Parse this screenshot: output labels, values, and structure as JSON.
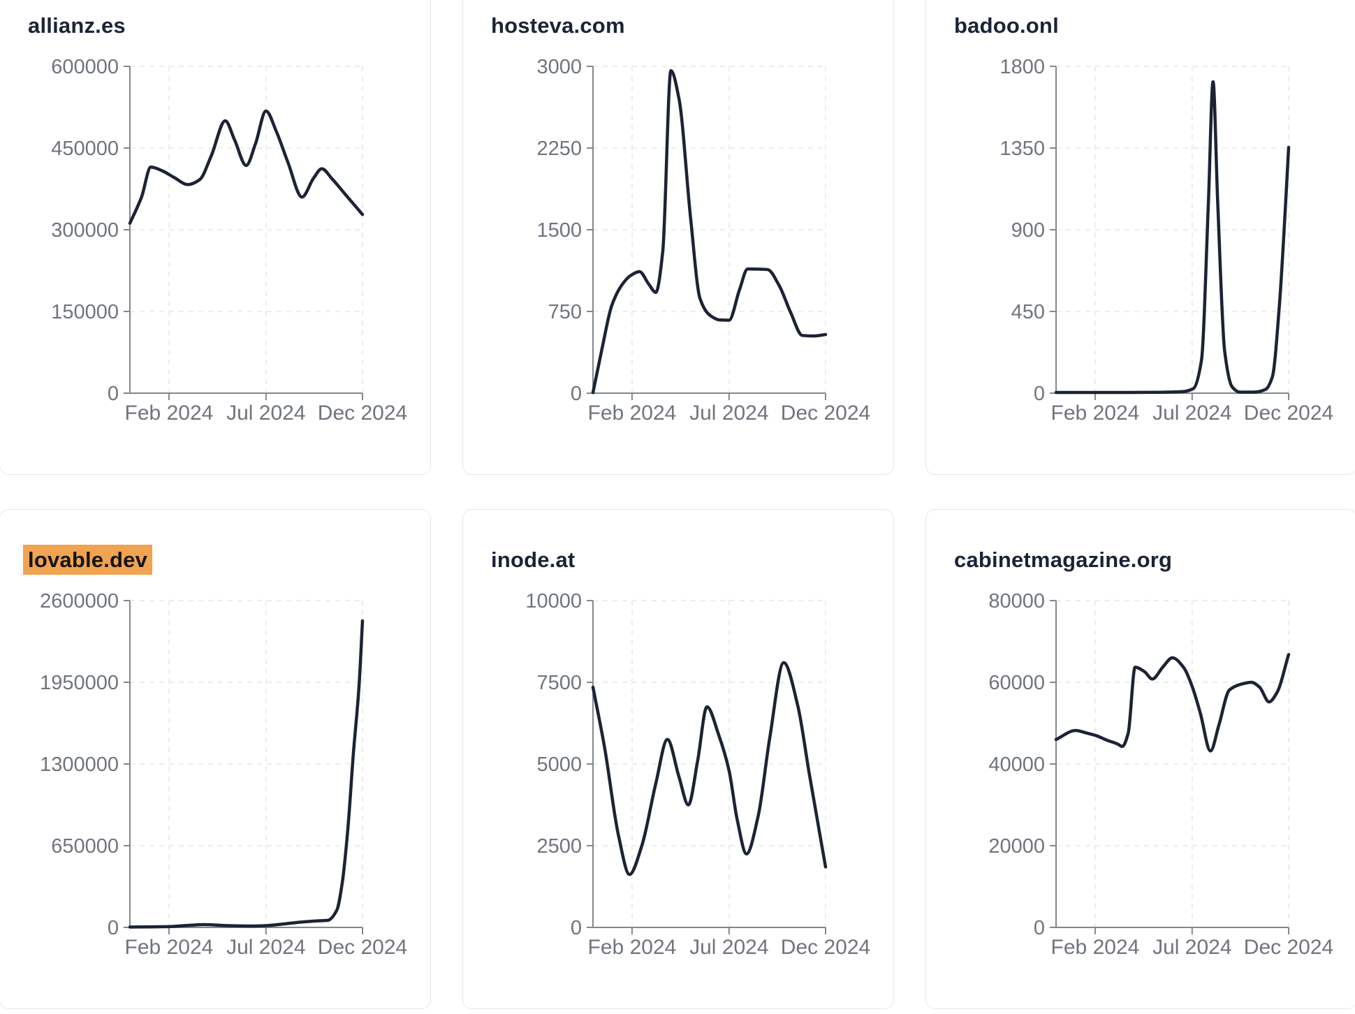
{
  "page": {
    "background": "#ffffff"
  },
  "colors": {
    "line": "#1b2334",
    "title": "#1b2336",
    "tick_label": "#6f747d",
    "axis": "#83878d",
    "grid": "#ededed",
    "card_border": "#e3e9f2",
    "card_bg": "#ffffff",
    "highlight_bg": "#f0a351",
    "highlight_text": "#141414"
  },
  "x_axis": {
    "tick_labels": [
      "Feb 2024",
      "Jul 2024",
      "Dec 2024"
    ],
    "tick_positions": [
      0.168,
      0.585,
      1.0
    ]
  },
  "chart_data": [
    {
      "type": "line",
      "title": "allianz.es",
      "highlighted": false,
      "ylim": [
        0,
        600000
      ],
      "y_ticks": [
        0,
        150000,
        300000,
        450000,
        600000
      ],
      "x_tick_labels": [
        "Feb 2024",
        "Jul 2024",
        "Dec 2024"
      ],
      "grid": true,
      "points": [
        [
          0,
          312000
        ],
        [
          0.05,
          360000
        ],
        [
          0.09,
          415000
        ],
        [
          0.14,
          408000
        ],
        [
          0.19,
          396000
        ],
        [
          0.25,
          383000
        ],
        [
          0.3,
          392000
        ],
        [
          0.35,
          436000
        ],
        [
          0.41,
          500000
        ],
        [
          0.45,
          465000
        ],
        [
          0.5,
          418000
        ],
        [
          0.54,
          458000
        ],
        [
          0.585,
          518000
        ],
        [
          0.63,
          480000
        ],
        [
          0.68,
          423000
        ],
        [
          0.74,
          360000
        ],
        [
          0.79,
          395000
        ],
        [
          0.825,
          412000
        ],
        [
          0.87,
          393000
        ],
        [
          0.93,
          363000
        ],
        [
          1.0,
          328000
        ]
      ]
    },
    {
      "type": "line",
      "title": "hosteva.com",
      "highlighted": false,
      "ylim": [
        0,
        3000
      ],
      "y_ticks": [
        0,
        750,
        1500,
        2250,
        3000
      ],
      "x_tick_labels": [
        "Feb 2024",
        "Jul 2024",
        "Dec 2024"
      ],
      "grid": true,
      "points": [
        [
          0,
          5
        ],
        [
          0.04,
          420
        ],
        [
          0.08,
          800
        ],
        [
          0.12,
          980
        ],
        [
          0.162,
          1080
        ],
        [
          0.2,
          1115
        ],
        [
          0.24,
          1000
        ],
        [
          0.27,
          925
        ],
        [
          0.3,
          1300
        ],
        [
          0.335,
          2960
        ],
        [
          0.37,
          2700
        ],
        [
          0.42,
          1600
        ],
        [
          0.46,
          870
        ],
        [
          0.5,
          720
        ],
        [
          0.545,
          672
        ],
        [
          0.585,
          670
        ],
        [
          0.63,
          950
        ],
        [
          0.665,
          1140
        ],
        [
          0.75,
          1135
        ],
        [
          0.8,
          990
        ],
        [
          0.85,
          740
        ],
        [
          0.9,
          530
        ],
        [
          0.95,
          525
        ],
        [
          1.0,
          538
        ]
      ]
    },
    {
      "type": "line",
      "title": "badoo.onl",
      "highlighted": false,
      "ylim": [
        0,
        1800
      ],
      "y_ticks": [
        0,
        450,
        900,
        1350,
        1800
      ],
      "x_tick_labels": [
        "Feb 2024",
        "Jul 2024",
        "Dec 2024"
      ],
      "grid": true,
      "points": [
        [
          0,
          4
        ],
        [
          0.15,
          4
        ],
        [
          0.3,
          4
        ],
        [
          0.45,
          5
        ],
        [
          0.54,
          8
        ],
        [
          0.59,
          25
        ],
        [
          0.625,
          180
        ],
        [
          0.655,
          1050
        ],
        [
          0.675,
          1715
        ],
        [
          0.695,
          1050
        ],
        [
          0.725,
          230
        ],
        [
          0.757,
          35
        ],
        [
          0.79,
          6
        ],
        [
          0.85,
          6
        ],
        [
          0.9,
          20
        ],
        [
          0.93,
          90
        ],
        [
          0.96,
          480
        ],
        [
          0.985,
          1000
        ],
        [
          1.0,
          1354
        ]
      ]
    },
    {
      "type": "line",
      "title": "lovable.dev",
      "highlighted": true,
      "ylim": [
        0,
        2600000
      ],
      "y_ticks": [
        0,
        650000,
        1300000,
        1950000,
        2600000
      ],
      "x_tick_labels": [
        "Feb 2024",
        "Jul 2024",
        "Dec 2024"
      ],
      "grid": true,
      "points": [
        [
          0,
          3000
        ],
        [
          0.09,
          4000
        ],
        [
          0.168,
          6000
        ],
        [
          0.25,
          16000
        ],
        [
          0.32,
          22000
        ],
        [
          0.42,
          14000
        ],
        [
          0.52,
          11000
        ],
        [
          0.585,
          14000
        ],
        [
          0.66,
          27000
        ],
        [
          0.74,
          43000
        ],
        [
          0.81,
          52000
        ],
        [
          0.85,
          56000
        ],
        [
          0.89,
          139000
        ],
        [
          0.913,
          355000
        ],
        [
          0.937,
          783000
        ],
        [
          0.961,
          1389000
        ],
        [
          0.985,
          1917000
        ],
        [
          1.0,
          2439000
        ]
      ]
    },
    {
      "type": "line",
      "title": "inode.at",
      "highlighted": false,
      "ylim": [
        0,
        10000
      ],
      "y_ticks": [
        0,
        2500,
        5000,
        7500,
        10000
      ],
      "x_tick_labels": [
        "Feb 2024",
        "Jul 2024",
        "Dec 2024"
      ],
      "grid": true,
      "points": [
        [
          0,
          7350
        ],
        [
          0.05,
          5500
        ],
        [
          0.11,
          2800
        ],
        [
          0.157,
          1620
        ],
        [
          0.21,
          2500
        ],
        [
          0.27,
          4400
        ],
        [
          0.32,
          5750
        ],
        [
          0.37,
          4600
        ],
        [
          0.41,
          3750
        ],
        [
          0.45,
          5100
        ],
        [
          0.49,
          6750
        ],
        [
          0.54,
          5900
        ],
        [
          0.585,
          4800
        ],
        [
          0.62,
          3300
        ],
        [
          0.66,
          2250
        ],
        [
          0.71,
          3400
        ],
        [
          0.76,
          5800
        ],
        [
          0.82,
          8100
        ],
        [
          0.88,
          6800
        ],
        [
          0.93,
          4700
        ],
        [
          1.0,
          1850
        ]
      ]
    },
    {
      "type": "line",
      "title": "cabinetmagazine.org",
      "highlighted": false,
      "ylim": [
        0,
        80000
      ],
      "y_ticks": [
        0,
        20000,
        40000,
        60000,
        80000
      ],
      "x_tick_labels": [
        "Feb 2024",
        "Jul 2024",
        "Dec 2024"
      ],
      "grid": true,
      "points": [
        [
          0,
          46000
        ],
        [
          0.084,
          48200
        ],
        [
          0.13,
          47600
        ],
        [
          0.17,
          47000
        ],
        [
          0.22,
          45800
        ],
        [
          0.264,
          44900
        ],
        [
          0.285,
          44300
        ],
        [
          0.31,
          47500
        ],
        [
          0.34,
          63700
        ],
        [
          0.38,
          62600
        ],
        [
          0.414,
          60800
        ],
        [
          0.46,
          63800
        ],
        [
          0.5,
          66000
        ],
        [
          0.55,
          63500
        ],
        [
          0.585,
          59000
        ],
        [
          0.62,
          52500
        ],
        [
          0.664,
          43200
        ],
        [
          0.7,
          49500
        ],
        [
          0.745,
          58100
        ],
        [
          0.8,
          59600
        ],
        [
          0.84,
          60000
        ],
        [
          0.875,
          58800
        ],
        [
          0.916,
          55200
        ],
        [
          0.95,
          57500
        ],
        [
          1.0,
          66800
        ]
      ]
    }
  ]
}
